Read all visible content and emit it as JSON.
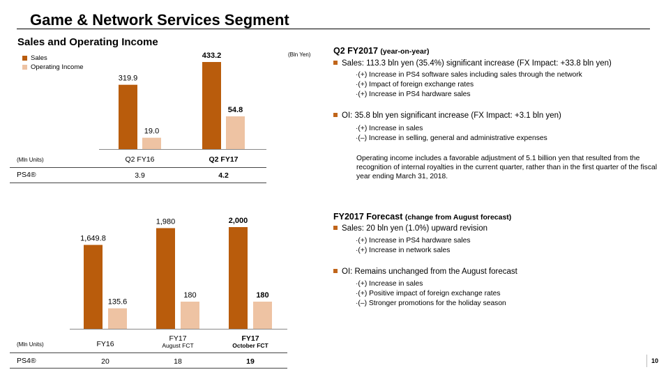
{
  "page": {
    "title": "Game & Network Services Segment",
    "subtitle": "Sales and Operating Income",
    "page_number": "10"
  },
  "legend": {
    "sales": "Sales",
    "operating_income": "Operating Income"
  },
  "colors": {
    "sales": "#b95c0c",
    "operating_income": "#eec3a3",
    "bullet": "#c0651a"
  },
  "units": {
    "bln_yen": "(Bln Yen)",
    "mln_units": "(Mln Units)"
  },
  "chart_data": [
    {
      "type": "bar",
      "title": "Sales and Operating Income (Q2)",
      "ylabel": "Bln Yen",
      "categories": [
        "Q2 FY16",
        "Q2 FY17"
      ],
      "category_sublabels": [
        "",
        ""
      ],
      "bold_category": [
        false,
        true
      ],
      "series": [
        {
          "name": "Sales",
          "values": [
            319.9,
            433.2
          ],
          "labels": [
            "319.9",
            "433.2"
          ]
        },
        {
          "name": "Operating Income",
          "values": [
            19.0,
            54.8
          ],
          "labels": [
            "19.0",
            "54.8"
          ]
        }
      ],
      "legend_position": "top-left",
      "grid": false,
      "table": {
        "row_label": "PS4®",
        "unit_label": "(Mln Units)",
        "values": [
          "3.9",
          "4.2"
        ]
      }
    },
    {
      "type": "bar",
      "title": "Sales and Operating Income (Full Year)",
      "ylabel": "Bln Yen",
      "categories": [
        "FY16",
        "FY17",
        "FY17"
      ],
      "category_sublabels": [
        "",
        "August FCT",
        "October FCT"
      ],
      "bold_category": [
        false,
        false,
        true
      ],
      "series": [
        {
          "name": "Sales",
          "values": [
            1649.8,
            1980,
            2000
          ],
          "labels": [
            "1,649.8",
            "1,980",
            "2,000"
          ]
        },
        {
          "name": "Operating Income",
          "values": [
            135.6,
            180,
            180
          ],
          "labels": [
            "135.6",
            "180",
            "180"
          ]
        }
      ],
      "grid": false,
      "table": {
        "row_label": "PS4®",
        "unit_label": "(Mln Units)",
        "values": [
          "20",
          "18",
          "19"
        ]
      }
    }
  ],
  "q2": {
    "heading": "Q2 FY2017",
    "heading_note": "(year-on-year)",
    "sales_line": "Sales: 113.3 bln yen (35.4%) significant increase (FX Impact: +33.8 bln yen)",
    "sales_items": [
      "·(+) Increase in PS4 software sales including sales through the network",
      "·(+) Impact of foreign exchange rates",
      "·(+) Increase in PS4 hardware sales"
    ],
    "oi_line": "OI: 35.8 bln yen significant increase (FX Impact: +3.1 bln yen)",
    "oi_items": [
      "·(+) Increase in sales",
      "·(–) Increase in selling, general and administrative expenses"
    ],
    "note": "Operating income includes a favorable adjustment of 5.1 billion yen that resulted from the recognition of internal royalties in the current quarter, rather than in the first quarter of the fiscal year ending March 31, 2018."
  },
  "forecast": {
    "heading": "FY2017 Forecast",
    "heading_note": "(change from August forecast)",
    "sales_line": "Sales: 20 bln yen (1.0%) upward revision",
    "sales_items": [
      "·(+) Increase in PS4 hardware sales",
      "·(+) Increase in network sales"
    ],
    "oi_line": "OI: Remains unchanged from the August forecast",
    "oi_items": [
      "·(+) Increase in sales",
      "·(+) Positive impact of foreign exchange rates",
      "·(–) Stronger promotions for the holiday season"
    ]
  }
}
